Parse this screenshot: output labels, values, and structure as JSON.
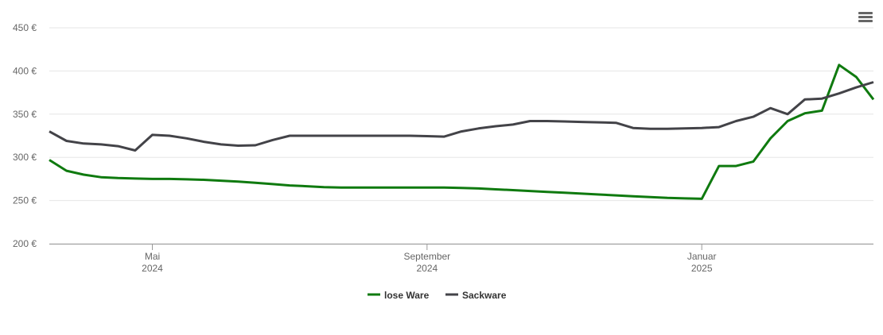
{
  "chart_data": {
    "type": "line",
    "categories": [
      null,
      null,
      null,
      null,
      null,
      null,
      [
        "Mai",
        "2024"
      ],
      null,
      null,
      null,
      null,
      null,
      null,
      null,
      null,
      null,
      null,
      null,
      null,
      null,
      null,
      null,
      [
        "September",
        "2024"
      ],
      null,
      null,
      null,
      null,
      null,
      null,
      null,
      null,
      null,
      null,
      null,
      null,
      null,
      null,
      null,
      [
        "Januar",
        "2025"
      ],
      null,
      null,
      null,
      null,
      null,
      null,
      null,
      null,
      null,
      null
    ],
    "series": [
      {
        "name": "lose Ware",
        "color": "#0f7a0f",
        "values": [
          297,
          284.5,
          280,
          277,
          276,
          275.5,
          275,
          275,
          274.5,
          274,
          273,
          272,
          270.5,
          269,
          267.5,
          266.5,
          265.5,
          265,
          265,
          265,
          265,
          265,
          265,
          265,
          264.5,
          264,
          263,
          262,
          261,
          260,
          259,
          258,
          257,
          256,
          255,
          254,
          253,
          252.5,
          252,
          290,
          290,
          295,
          322,
          342,
          351,
          354,
          407,
          393,
          367
        ]
      },
      {
        "name": "Sackware",
        "color": "#434348",
        "values": [
          330,
          319,
          316,
          315,
          313,
          308,
          326,
          325,
          322,
          318,
          315,
          313.5,
          314,
          320,
          325,
          325,
          325,
          325,
          325,
          325,
          325,
          325,
          324.5,
          324,
          330,
          333.5,
          336,
          338,
          342,
          342,
          341.5,
          341,
          340.5,
          340,
          334,
          333,
          333,
          333.5,
          334,
          335,
          342,
          347,
          357,
          350,
          367,
          368,
          374,
          381,
          387
        ]
      }
    ],
    "ylim": [
      200,
      450
    ],
    "yticks": [
      {
        "value": 200,
        "label": "200 €"
      },
      {
        "value": 250,
        "label": "250 €"
      },
      {
        "value": 300,
        "label": "300 €"
      },
      {
        "value": 350,
        "label": "350 €"
      },
      {
        "value": 400,
        "label": "400 €"
      },
      {
        "value": 450,
        "label": "450 €"
      }
    ],
    "grid": true
  }
}
